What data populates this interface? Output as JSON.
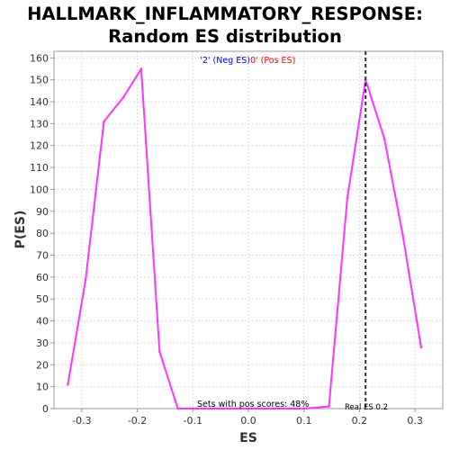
{
  "chart_data": {
    "type": "line",
    "title_line1": "HALLMARK_INFLAMMATORY_RESPONSE:",
    "title_line2": "Random ES distribution",
    "xlabel": "ES",
    "ylabel": "P(ES)",
    "xlim": [
      -0.35,
      0.35
    ],
    "ylim": [
      0,
      163
    ],
    "xticks": [
      -0.3,
      -0.2,
      -0.1,
      0.0,
      0.1,
      0.2,
      0.3
    ],
    "xtick_labels": [
      "-0.3",
      "-0.2",
      "-0.1",
      "0.0",
      "0.1",
      "0.2",
      "0.3"
    ],
    "yticks": [
      0,
      10,
      20,
      30,
      40,
      50,
      60,
      70,
      80,
      90,
      100,
      110,
      120,
      130,
      140,
      150,
      160
    ],
    "ytick_labels": [
      "0",
      "10",
      "20",
      "30",
      "40",
      "50",
      "60",
      "70",
      "80",
      "90",
      "100",
      "110",
      "120",
      "130",
      "140",
      "150",
      "160"
    ],
    "grid": true,
    "series": [
      {
        "color": "#ff33ff",
        "points": [
          [
            -0.325,
            11
          ],
          [
            -0.293,
            59
          ],
          [
            -0.26,
            131
          ],
          [
            -0.225,
            142
          ],
          [
            -0.193,
            155
          ],
          [
            -0.16,
            26
          ],
          [
            -0.127,
            0
          ],
          [
            0.0,
            0
          ],
          [
            0.1,
            0
          ],
          [
            0.145,
            1
          ],
          [
            0.178,
            96
          ],
          [
            0.211,
            150
          ],
          [
            0.245,
            123
          ],
          [
            0.278,
            79
          ],
          [
            0.311,
            28
          ]
        ]
      }
    ],
    "real_es": 0.211,
    "legend": {
      "neg_label": "'2' (Neg ES)",
      "pos_label": "0' (Pos ES)",
      "neg_color": "#0000ff",
      "pos_color": "#ff0000",
      "placement": "top-center"
    },
    "annotations": {
      "pos_scores": "Sets with pos scores: 48%",
      "real_es": "Real ES 0.2"
    }
  }
}
